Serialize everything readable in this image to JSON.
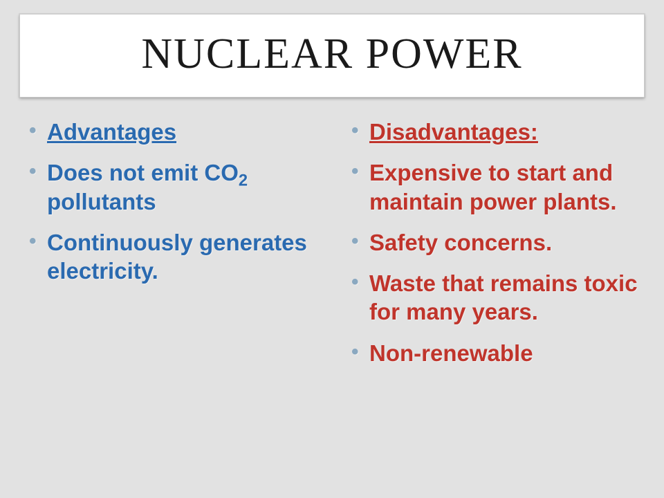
{
  "slide": {
    "title": "NUCLEAR POWER",
    "background_color": "#e2e2e2",
    "title_box": {
      "background_color": "#ffffff",
      "border_color": "#cfcfcf",
      "font_family": "Book Antiqua",
      "font_size_pt": 46,
      "text_color": "#1a1a1a"
    },
    "bullet_color": "#8aa8c0",
    "body_font_family": "Century Gothic",
    "body_font_size_pt": 25,
    "body_font_weight": 700,
    "left_column": {
      "heading": "Advantages",
      "heading_color": "#2a6ab0",
      "items": [
        {
          "text_html": "Does not emit CO<sub>2</sub> pollutants",
          "color": "#2a6ab0"
        },
        {
          "text_html": "Continuously generates electricity.",
          "color": "#2a6ab0"
        }
      ]
    },
    "right_column": {
      "heading": "Disadvantages:",
      "heading_color": "#c0342b",
      "items": [
        {
          "text_html": "Expensive to start and maintain power plants.",
          "color": "#c0342b"
        },
        {
          "text_html": "Safety concerns.",
          "color": "#c0342b"
        },
        {
          "text_html": "Waste that remains toxic for many years.",
          "color": "#c0342b"
        },
        {
          "text_html": "Non-renewable",
          "color": "#c0342b"
        }
      ]
    }
  }
}
